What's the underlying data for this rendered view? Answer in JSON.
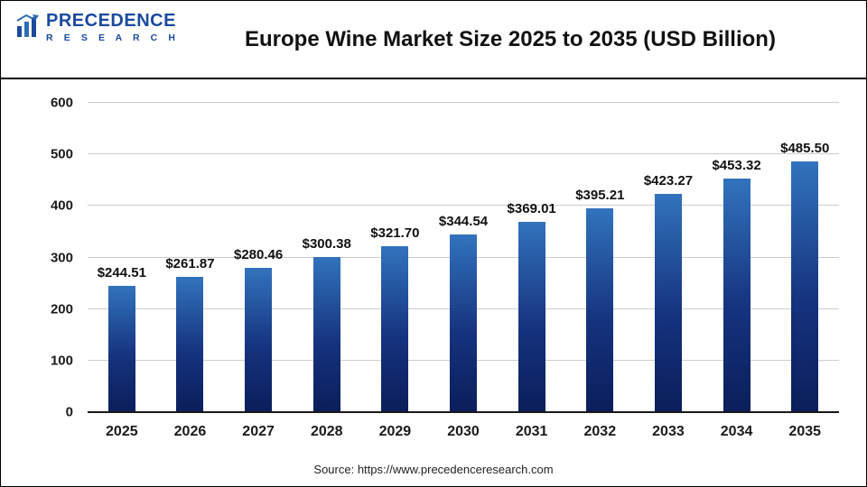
{
  "header": {
    "logo": {
      "line1": "PRECEDENCE",
      "line2": "R E S E A R C H"
    },
    "title": "Europe Wine Market Size 2025 to 2035 (USD Billion)"
  },
  "chart_data": {
    "type": "bar",
    "title": "Europe Wine Market Size 2025 to 2035 (USD Billion)",
    "categories": [
      "2025",
      "2026",
      "2027",
      "2028",
      "2029",
      "2030",
      "2031",
      "2032",
      "2033",
      "2034",
      "2035"
    ],
    "values": [
      244.51,
      261.87,
      280.46,
      300.38,
      321.7,
      344.54,
      369.01,
      395.21,
      423.27,
      453.32,
      485.5
    ],
    "value_labels": [
      "$244.51",
      "$261.87",
      "$280.46",
      "$300.38",
      "$321.70",
      "$344.54",
      "$369.01",
      "$395.21",
      "$423.27",
      "$453.32",
      "$485.50"
    ],
    "xlabel": "",
    "ylabel": "",
    "ylim": [
      0,
      600
    ],
    "yticks": [
      0,
      100,
      200,
      300,
      400,
      500,
      600
    ],
    "grid": "horizontal",
    "legend": "none",
    "colors": {
      "bar_top": "#3273bd",
      "bar_mid": "#16337f",
      "bar_bottom": "#0a1e5a",
      "gridline": "#cccccc",
      "logo_blue": "#1b4a9e"
    }
  },
  "footer": {
    "source": "Source: https://www.precedenceresearch.com"
  }
}
